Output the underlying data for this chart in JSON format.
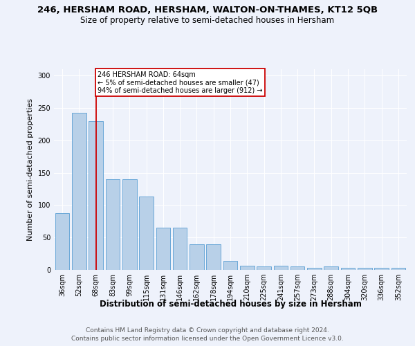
{
  "title": "246, HERSHAM ROAD, HERSHAM, WALTON-ON-THAMES, KT12 5QB",
  "subtitle": "Size of property relative to semi-detached houses in Hersham",
  "xlabel": "Distribution of semi-detached houses by size in Hersham",
  "ylabel": "Number of semi-detached properties",
  "footer1": "Contains HM Land Registry data © Crown copyright and database right 2024.",
  "footer2": "Contains public sector information licensed under the Open Government Licence v3.0.",
  "categories": [
    "36sqm",
    "52sqm",
    "68sqm",
    "83sqm",
    "99sqm",
    "115sqm",
    "131sqm",
    "146sqm",
    "162sqm",
    "178sqm",
    "194sqm",
    "210sqm",
    "225sqm",
    "241sqm",
    "257sqm",
    "273sqm",
    "288sqm",
    "304sqm",
    "320sqm",
    "336sqm",
    "352sqm"
  ],
  "values": [
    88,
    243,
    230,
    140,
    140,
    113,
    65,
    65,
    40,
    40,
    14,
    6,
    5,
    6,
    5,
    3,
    5,
    3,
    3,
    3,
    3
  ],
  "bar_color": "#b8d0e8",
  "bar_edge_color": "#5a9fd4",
  "highlight_index": 2,
  "highlight_color": "#cc0000",
  "annotation_text": "246 HERSHAM ROAD: 64sqm\n← 5% of semi-detached houses are smaller (47)\n94% of semi-detached houses are larger (912) →",
  "annotation_box_color": "#ffffff",
  "annotation_border_color": "#cc0000",
  "ylim": [
    0,
    310
  ],
  "yticks": [
    0,
    50,
    100,
    150,
    200,
    250,
    300
  ],
  "bg_color": "#eef2fb",
  "plot_bg_color": "#eef2fb",
  "title_fontsize": 9.5,
  "subtitle_fontsize": 8.5,
  "axis_label_fontsize": 8,
  "tick_fontsize": 7,
  "footer_fontsize": 6.5,
  "annotation_fontsize": 7
}
